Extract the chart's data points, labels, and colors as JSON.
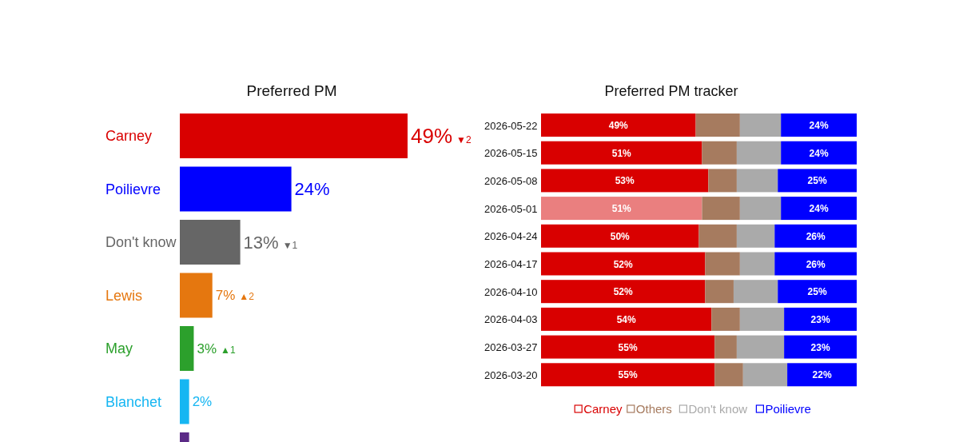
{
  "chart_data": [
    {
      "type": "bar",
      "orientation": "horizontal",
      "title": "Preferred PM",
      "categories": [
        "Carney",
        "Poilievre",
        "Don't know",
        "Lewis",
        "May",
        "Blanchet",
        null
      ],
      "values": [
        49,
        24,
        13,
        7,
        3,
        2,
        2
      ],
      "colors": [
        "#d90000",
        "#0000ff",
        "#666666",
        "#e5770f",
        "#2ca02c",
        "#16b6f2",
        "#5b2a86"
      ],
      "value_labels": [
        "49% ▼2",
        "24%",
        "13% ▼1",
        "7% ▲2",
        "3% ▲1",
        "2%",
        null
      ]
    },
    {
      "type": "bar",
      "orientation": "horizontal",
      "stacked": true,
      "title": "Preferred PM tracker",
      "legend": "bottom",
      "categories": [
        "2026-05-22",
        "2026-05-15",
        "2026-05-08",
        "2026-05-01",
        "2026-04-24",
        "2026-04-17",
        "2026-04-10",
        "2026-04-03",
        "2026-03-27",
        "2026-03-20"
      ],
      "series": [
        {
          "name": "Carney",
          "color": "#d90000",
          "colors": [
            "#d90000",
            "#d90000",
            "#d90000",
            "#ea7f7f",
            "#d90000",
            "#d90000",
            "#d90000",
            "#d90000",
            "#d90000",
            "#d90000"
          ],
          "values": [
            49,
            51,
            53,
            51,
            50,
            52,
            52,
            54,
            55,
            55
          ],
          "value_labels": [
            "49%",
            "51%",
            "53%",
            "51%",
            "50%",
            "52%",
            "52%",
            "54%",
            "55%",
            "55%"
          ]
        },
        {
          "name": "Others",
          "color": "#a67b5f",
          "values": [
            14,
            11,
            9,
            12,
            12,
            11,
            9,
            9,
            7,
            9
          ]
        },
        {
          "name": "Don't know",
          "color": "#aaaaaa",
          "values": [
            13,
            14,
            13,
            13,
            12,
            11,
            14,
            14,
            15,
            14
          ]
        },
        {
          "name": "Poilievre",
          "color": "#0000ff",
          "values": [
            24,
            24,
            25,
            24,
            26,
            26,
            25,
            23,
            23,
            22
          ],
          "value_labels": [
            "24%",
            "24%",
            "25%",
            "24%",
            "26%",
            "26%",
            "25%",
            "23%",
            "23%",
            "22%"
          ]
        }
      ]
    }
  ]
}
